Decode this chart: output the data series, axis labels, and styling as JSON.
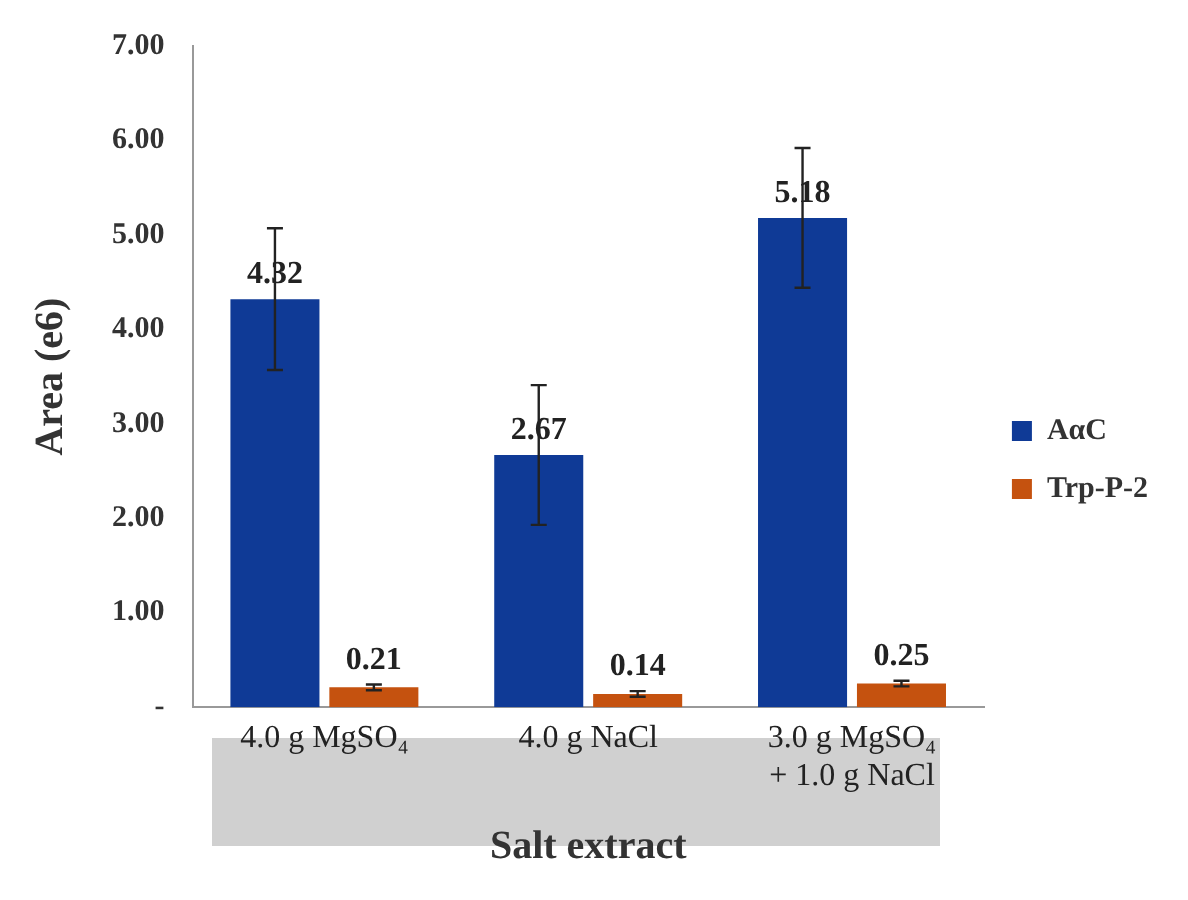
{
  "chart_data": {
    "type": "bar",
    "xlabel": "Salt extract",
    "ylabel": "Area (e6)",
    "categories": [
      "4.0 g MgSO₄",
      "4.0 g NaCl",
      "3.0 g MgSO₄\n+ 1.0 g NaCl"
    ],
    "series": [
      {
        "name": "AαC",
        "color": "#0f3a96",
        "values": [
          4.32,
          2.67,
          5.18
        ],
        "errors": [
          0.75,
          0.74,
          0.74
        ]
      },
      {
        "name": "Trp-P-2",
        "color": "#c5520f",
        "values": [
          0.21,
          0.14,
          0.25
        ],
        "errors": [
          0.03,
          0.03,
          0.03
        ]
      }
    ],
    "ylim": [
      0,
      7
    ],
    "yticks": [
      {
        "value": 0,
        "label": "-"
      },
      {
        "value": 1,
        "label": "1.00"
      },
      {
        "value": 2,
        "label": "2.00"
      },
      {
        "value": 3,
        "label": "3.00"
      },
      {
        "value": 4,
        "label": "4.00"
      },
      {
        "value": 5,
        "label": "5.00"
      },
      {
        "value": 6,
        "label": "6.00"
      },
      {
        "value": 7,
        "label": "7.00"
      }
    ],
    "grid": false,
    "legend": "right",
    "data_labels": true
  }
}
